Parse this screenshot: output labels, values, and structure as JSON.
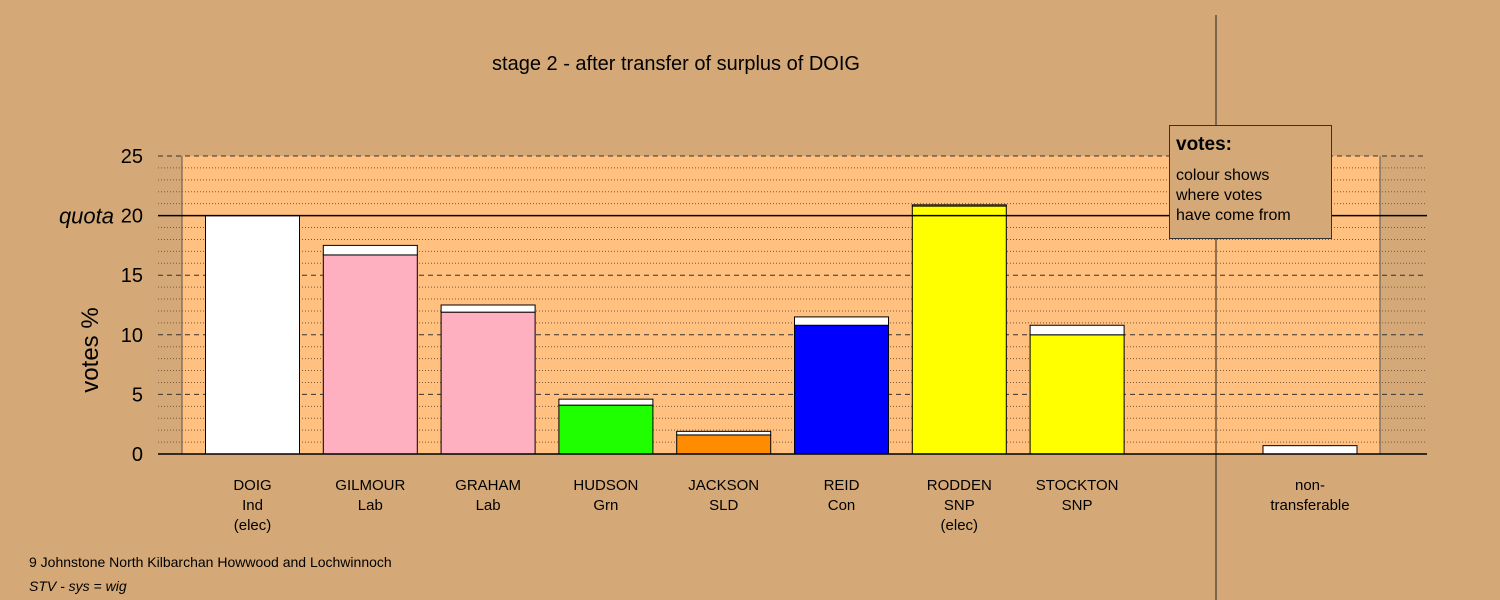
{
  "chart_data": {
    "type": "bar",
    "title": "stage 2 - after transfer of surplus of DOIG",
    "ylabel": "votes %",
    "ylim": [
      0,
      25
    ],
    "yticks": [
      0,
      5,
      10,
      15,
      20,
      25
    ],
    "quota": 20,
    "quota_label": "quota",
    "categories": [
      {
        "name": "DOIG",
        "party": "Ind",
        "note": "(elec)"
      },
      {
        "name": "GILMOUR",
        "party": "Lab",
        "note": ""
      },
      {
        "name": "GRAHAM",
        "party": "Lab",
        "note": ""
      },
      {
        "name": "HUDSON",
        "party": "Grn",
        "note": ""
      },
      {
        "name": "JACKSON",
        "party": "SLD",
        "note": ""
      },
      {
        "name": "REID",
        "party": "Con",
        "note": ""
      },
      {
        "name": "RODDEN",
        "party": "SNP",
        "note": "(elec)"
      },
      {
        "name": "STOCKTON",
        "party": "SNP",
        "note": ""
      }
    ],
    "series": [
      {
        "values": [
          20.0,
          16.7,
          11.9,
          4.1,
          1.6,
          10.8,
          20.8,
          10.0
        ]
      },
      {
        "values": [
          0.0,
          0.8,
          0.6,
          0.5,
          0.3,
          0.7,
          0.1,
          0.8
        ]
      }
    ],
    "non_transferable": {
      "label_lines": [
        "non-",
        "transferable"
      ],
      "value": 0.7
    },
    "colors": {
      "background": "#d4a977",
      "plot_area": "#ffc080",
      "bars": [
        "#ffffff",
        "#ffb0c0",
        "#ffb0c0",
        "#20ff00",
        "#ff8c00",
        "#0000ff",
        "#ffff00",
        "#ffff00"
      ],
      "transfer": "#ffffff"
    },
    "grid": true
  },
  "legend": {
    "title": "votes:",
    "lines": [
      "colour shows",
      "where votes",
      "have come from"
    ]
  },
  "footer": {
    "ward": "9 Johnstone North Kilbarchan Howwood and Lochwinnoch",
    "system": "STV - sys = wig"
  }
}
